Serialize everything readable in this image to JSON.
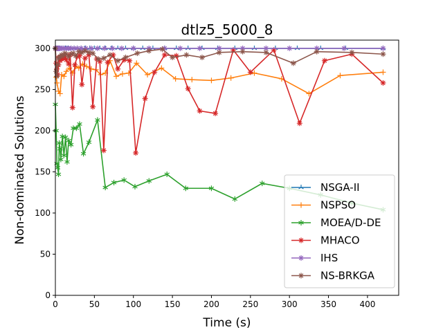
{
  "chart_data": {
    "type": "line",
    "title": "dtlz5_5000_8",
    "xlabel": "Time (s)",
    "ylabel": "Non-dominated Solutions",
    "xlim": [
      0,
      440
    ],
    "ylim": [
      0,
      310
    ],
    "xticks": [
      0,
      50,
      100,
      150,
      200,
      250,
      300,
      350,
      400
    ],
    "yticks": [
      0,
      50,
      100,
      150,
      200,
      250,
      300
    ],
    "grid": false,
    "legend_position": "lower-right",
    "series": [
      {
        "name": "NSGA-II",
        "color": "#1f77b4",
        "marker": "tri",
        "points": [
          [
            0.5,
            300
          ],
          [
            2,
            300
          ],
          [
            4,
            300
          ],
          [
            6,
            300
          ],
          [
            8,
            300
          ],
          [
            10,
            300
          ],
          [
            13,
            300
          ],
          [
            16,
            300
          ],
          [
            20,
            300
          ],
          [
            24,
            300
          ],
          [
            28,
            300
          ],
          [
            33,
            300
          ],
          [
            38,
            300
          ],
          [
            44,
            300
          ],
          [
            50,
            300
          ],
          [
            57,
            300
          ],
          [
            64,
            300
          ],
          [
            72,
            300
          ],
          [
            80,
            300
          ],
          [
            90,
            300
          ],
          [
            100,
            300
          ],
          [
            112,
            300
          ],
          [
            125,
            300
          ],
          [
            140,
            300
          ],
          [
            155,
            300
          ],
          [
            170,
            300
          ],
          [
            188,
            300
          ],
          [
            208,
            300
          ],
          [
            230,
            300
          ],
          [
            255,
            300
          ],
          [
            282,
            300
          ],
          [
            310,
            300
          ],
          [
            340,
            300
          ],
          [
            372,
            300
          ],
          [
            420,
            300
          ]
        ]
      },
      {
        "name": "NSPSO",
        "color": "#ff7f0e",
        "marker": "plus",
        "points": [
          [
            0,
            300
          ],
          [
            1,
            265
          ],
          [
            2,
            258
          ],
          [
            4,
            248
          ],
          [
            6,
            245
          ],
          [
            8,
            268
          ],
          [
            11,
            266
          ],
          [
            14,
            272
          ],
          [
            18,
            276
          ],
          [
            22,
            270
          ],
          [
            26,
            278
          ],
          [
            30,
            276
          ],
          [
            35,
            281
          ],
          [
            40,
            278
          ],
          [
            46,
            275
          ],
          [
            52,
            274
          ],
          [
            58,
            268
          ],
          [
            64,
            270
          ],
          [
            70,
            285
          ],
          [
            78,
            266
          ],
          [
            86,
            269
          ],
          [
            94,
            270
          ],
          [
            104,
            282
          ],
          [
            118,
            268
          ],
          [
            136,
            276
          ],
          [
            154,
            263
          ],
          [
            175,
            262
          ],
          [
            200,
            261
          ],
          [
            225,
            264
          ],
          [
            255,
            270
          ],
          [
            290,
            263
          ],
          [
            325,
            245
          ],
          [
            365,
            267
          ],
          [
            420,
            271
          ]
        ]
      },
      {
        "name": "MOEA/D-DE",
        "color": "#2ca02c",
        "marker": "star",
        "points": [
          [
            0,
            232
          ],
          [
            1,
            200
          ],
          [
            2,
            160
          ],
          [
            3,
            155
          ],
          [
            4,
            147
          ],
          [
            5,
            185
          ],
          [
            6,
            178
          ],
          [
            7,
            165
          ],
          [
            9,
            193
          ],
          [
            11,
            170
          ],
          [
            13,
            192
          ],
          [
            15,
            162
          ],
          [
            17,
            188
          ],
          [
            20,
            183
          ],
          [
            23,
            203
          ],
          [
            27,
            203
          ],
          [
            31,
            208
          ],
          [
            36,
            172
          ],
          [
            43,
            186
          ],
          [
            54,
            213
          ],
          [
            64,
            131
          ],
          [
            75,
            137
          ],
          [
            88,
            140
          ],
          [
            102,
            132
          ],
          [
            120,
            139
          ],
          [
            143,
            147
          ],
          [
            167,
            130
          ],
          [
            200,
            130
          ],
          [
            230,
            117
          ],
          [
            265,
            136
          ],
          [
            300,
            130
          ],
          [
            340,
            122
          ],
          [
            380,
            112
          ],
          [
            420,
            104
          ]
        ]
      },
      {
        "name": "MHACO",
        "color": "#d62728",
        "marker": "asterisk",
        "points": [
          [
            0,
            300
          ],
          [
            1,
            282
          ],
          [
            2,
            275
          ],
          [
            3,
            268
          ],
          [
            4,
            280
          ],
          [
            5,
            289
          ],
          [
            6,
            285
          ],
          [
            8,
            287
          ],
          [
            10,
            288
          ],
          [
            12,
            290
          ],
          [
            14,
            286
          ],
          [
            17,
            281
          ],
          [
            19,
            292
          ],
          [
            22,
            228
          ],
          [
            25,
            280
          ],
          [
            28,
            290
          ],
          [
            31,
            291
          ],
          [
            34,
            256
          ],
          [
            38,
            288
          ],
          [
            43,
            292
          ],
          [
            48,
            229
          ],
          [
            53,
            287
          ],
          [
            57,
            284
          ],
          [
            62,
            176
          ],
          [
            67,
            283
          ],
          [
            74,
            292
          ],
          [
            80,
            275
          ],
          [
            88,
            286
          ],
          [
            95,
            285
          ],
          [
            103,
            173
          ],
          [
            115,
            239
          ],
          [
            127,
            271
          ],
          [
            140,
            292
          ],
          [
            155,
            291
          ],
          [
            170,
            251
          ],
          [
            185,
            224
          ],
          [
            205,
            221
          ],
          [
            228,
            298
          ],
          [
            250,
            271
          ],
          [
            280,
            298
          ],
          [
            313,
            209
          ],
          [
            345,
            285
          ],
          [
            380,
            293
          ],
          [
            420,
            258
          ]
        ]
      },
      {
        "name": "IHS",
        "color": "#9467bd",
        "marker": "asterisk",
        "points": [
          [
            0,
            300
          ],
          [
            1,
            300
          ],
          [
            2,
            300
          ],
          [
            3,
            300
          ],
          [
            4,
            300
          ],
          [
            5,
            300
          ],
          [
            6,
            300
          ],
          [
            8,
            300
          ],
          [
            10,
            300
          ],
          [
            12,
            300
          ],
          [
            14,
            300
          ],
          [
            17,
            300
          ],
          [
            20,
            300
          ],
          [
            24,
            300
          ],
          [
            28,
            300
          ],
          [
            33,
            300
          ],
          [
            39,
            300
          ],
          [
            46,
            300
          ],
          [
            54,
            300
          ],
          [
            63,
            300
          ],
          [
            73,
            300
          ],
          [
            85,
            300
          ],
          [
            100,
            300
          ],
          [
            120,
            300
          ],
          [
            140,
            300
          ],
          [
            160,
            300
          ],
          [
            185,
            300
          ],
          [
            210,
            300
          ],
          [
            240,
            300
          ],
          [
            270,
            300
          ],
          [
            300,
            300
          ],
          [
            335,
            300
          ],
          [
            370,
            300
          ],
          [
            420,
            300
          ]
        ]
      },
      {
        "name": "NS-BRKGA",
        "color": "#8c564b",
        "marker": "asterisk",
        "points": [
          [
            0,
            300
          ],
          [
            1,
            272
          ],
          [
            2,
            266
          ],
          [
            3,
            280
          ],
          [
            4,
            288
          ],
          [
            6,
            290
          ],
          [
            8,
            292
          ],
          [
            10,
            291
          ],
          [
            12,
            294
          ],
          [
            14,
            293
          ],
          [
            17,
            290
          ],
          [
            20,
            293
          ],
          [
            23,
            294
          ],
          [
            26,
            291
          ],
          [
            30,
            296
          ],
          [
            34,
            295
          ],
          [
            38,
            297
          ],
          [
            43,
            295
          ],
          [
            48,
            294
          ],
          [
            55,
            287
          ],
          [
            62,
            288
          ],
          [
            70,
            292
          ],
          [
            80,
            285
          ],
          [
            90,
            289
          ],
          [
            105,
            294
          ],
          [
            120,
            297
          ],
          [
            137,
            299
          ],
          [
            150,
            289
          ],
          [
            168,
            292
          ],
          [
            188,
            289
          ],
          [
            210,
            295
          ],
          [
            240,
            296
          ],
          [
            270,
            295
          ],
          [
            305,
            282
          ],
          [
            335,
            296
          ],
          [
            380,
            295
          ],
          [
            420,
            293
          ]
        ]
      }
    ]
  }
}
